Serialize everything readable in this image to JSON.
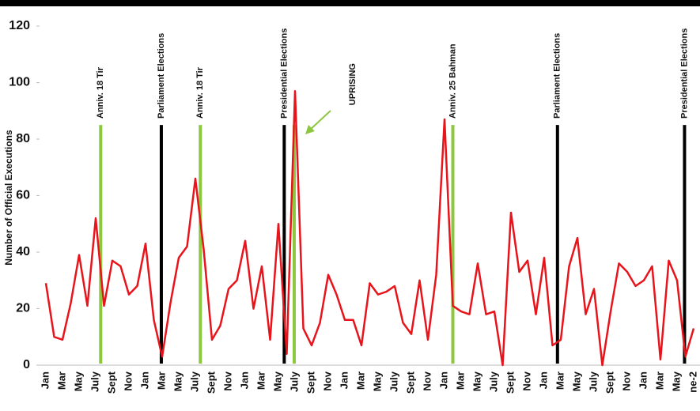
{
  "chart_data": {
    "type": "line",
    "y_label": "Number of Official Executions",
    "ylim": [
      0,
      120
    ],
    "yticks": [
      0,
      20,
      40,
      60,
      80,
      100,
      120
    ],
    "categories": [
      "Jan",
      null,
      "Mar",
      null,
      "May",
      null,
      "July",
      null,
      "Sept",
      null,
      "Nov",
      null,
      "Jan",
      null,
      "Mar",
      null,
      "May",
      null,
      "July",
      null,
      "Sept",
      null,
      "Nov",
      null,
      "Jan",
      null,
      "Mar",
      null,
      "May",
      null,
      "July",
      null,
      "Sept",
      null,
      "Nov",
      null,
      "Jan",
      null,
      "Mar",
      null,
      "May",
      null,
      "July",
      null,
      "Sept",
      null,
      "Nov",
      null,
      "Jan",
      null,
      "Mar",
      null,
      "May",
      null,
      "July",
      null,
      "Sept",
      null,
      "Nov",
      null,
      "Jan",
      null,
      "Mar",
      null,
      "May",
      null,
      "July",
      null,
      "Sept",
      null,
      "Nov",
      null,
      "Jan",
      null,
      "Mar",
      null,
      "May",
      null,
      "ne-2"
    ],
    "series": [
      {
        "color": "#e8141b",
        "values": [
          29,
          10,
          9,
          22,
          39,
          21,
          52,
          21,
          37,
          35,
          25,
          28,
          43,
          16,
          3,
          22,
          38,
          42,
          66,
          41,
          9,
          14,
          27,
          30,
          44,
          20,
          35,
          9,
          50,
          4,
          97,
          13,
          7,
          15,
          32,
          25,
          16,
          16,
          7,
          29,
          25,
          26,
          28,
          15,
          11,
          30,
          9,
          32,
          87,
          21,
          19,
          18,
          36,
          18,
          19,
          0,
          54,
          33,
          37,
          18,
          38,
          7,
          9,
          35,
          45,
          18,
          27,
          0,
          19,
          36,
          33,
          28,
          30,
          35,
          2,
          37,
          30,
          3,
          13
        ]
      }
    ],
    "events": [
      {
        "x": 6.6,
        "top": 85,
        "color": "#8dc63f",
        "label": "Anniv. 18 Tir"
      },
      {
        "x": 13.9,
        "top": 85,
        "color": "#000000",
        "label": "Parliament Elections"
      },
      {
        "x": 18.6,
        "top": 85,
        "color": "#8dc63f",
        "label": "Anniv. 18 Tir"
      },
      {
        "x": 28.7,
        "top": 85,
        "color": "#000000",
        "label": "Presidential Elections"
      },
      {
        "x": 29.9,
        "top": 85,
        "color": "#8dc63f",
        "label": "UPRISING"
      },
      {
        "x": 49,
        "top": 85,
        "color": "#8dc63f",
        "label": "Anniv. 25 Bahman"
      },
      {
        "x": 61.6,
        "top": 85,
        "color": "#000000",
        "label": "Parliament Elections"
      },
      {
        "x": 76.9,
        "top": 85,
        "color": "#000000",
        "label": "Presidential Elections"
      }
    ]
  }
}
